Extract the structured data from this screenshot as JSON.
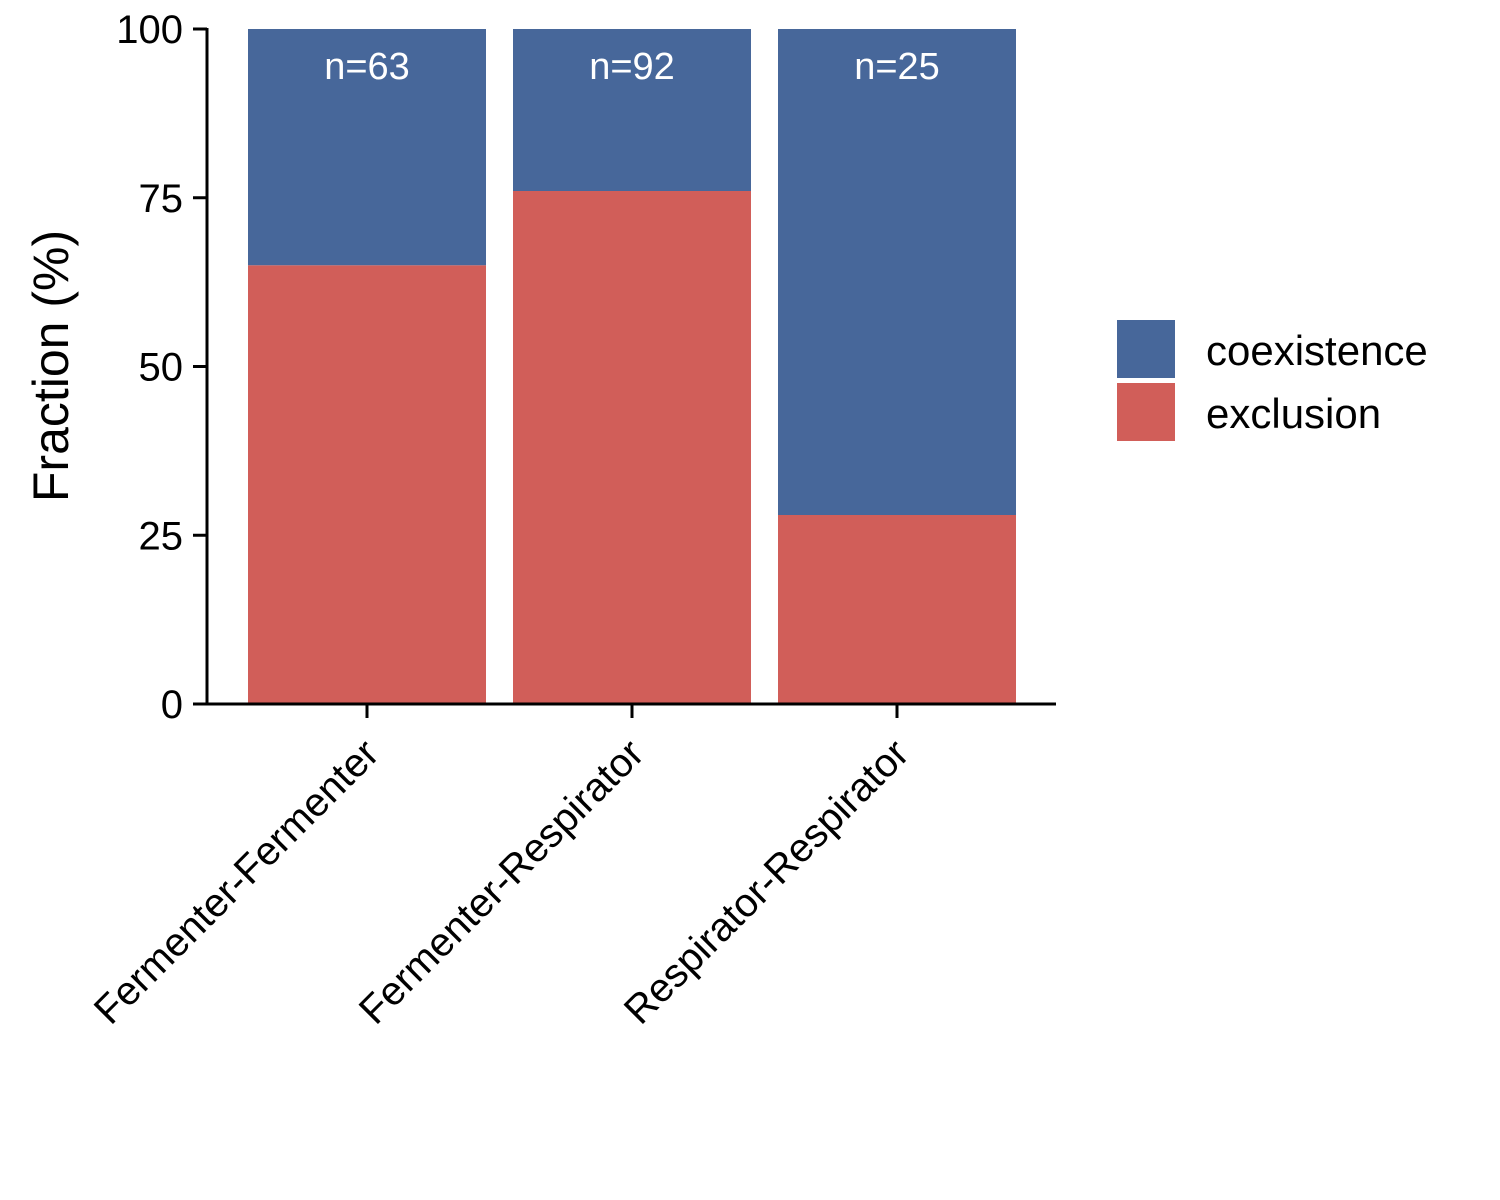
{
  "chart_data": {
    "type": "bar",
    "stacked": true,
    "categories": [
      "Fermenter-Fermenter",
      "Fermenter-Respirator",
      "Respirator-Respirator"
    ],
    "series": [
      {
        "name": "exclusion",
        "values": [
          65,
          76,
          28
        ],
        "color": "#d15e59"
      },
      {
        "name": "coexistence",
        "values": [
          35,
          24,
          72
        ],
        "color": "#47679a"
      }
    ],
    "annotations": [
      "n=63",
      "n=92",
      "n=25"
    ],
    "ylabel": "Fraction (%)",
    "ylim": [
      0,
      100
    ],
    "yticks": [
      0,
      25,
      50,
      75,
      100
    ],
    "grid": false,
    "legend": {
      "position": "right",
      "entries": [
        "coexistence",
        "exclusion"
      ]
    }
  }
}
